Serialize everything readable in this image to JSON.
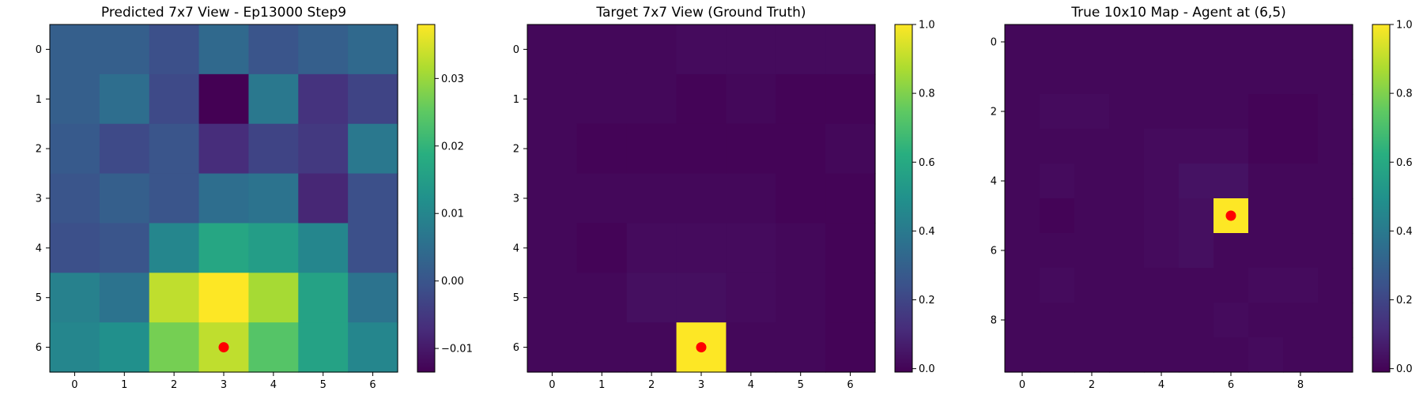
{
  "chart_data": [
    {
      "type": "heatmap",
      "title": "Predicted 7x7 View - Ep13000 Step9",
      "rows": 7,
      "cols": 7,
      "x_ticks": [
        0,
        1,
        2,
        3,
        4,
        5,
        6
      ],
      "y_ticks": [
        0,
        1,
        2,
        3,
        4,
        5,
        6
      ],
      "colormap": "viridis",
      "clim": [
        -0.0135,
        0.038
      ],
      "colorbar_ticks": [
        -0.01,
        0.0,
        0.01,
        0.02,
        0.03
      ],
      "colorbar_labels": [
        "−0.01",
        "0.00",
        "0.01",
        "0.02",
        "0.03"
      ],
      "agent_marker": {
        "row": 6,
        "col": 3,
        "color": "#ff0000"
      },
      "values": [
        [
          0.002,
          0.002,
          -0.001,
          0.004,
          -0.0,
          0.002,
          0.004
        ],
        [
          0.002,
          0.005,
          -0.002,
          -0.0135,
          0.007,
          -0.006,
          -0.003
        ],
        [
          0.001,
          -0.002,
          0.0,
          -0.007,
          -0.003,
          -0.005,
          0.007
        ],
        [
          -0.0,
          0.002,
          0.0,
          0.005,
          0.006,
          -0.008,
          -0.001
        ],
        [
          -0.001,
          -0.0,
          0.01,
          0.017,
          0.015,
          0.01,
          -0.001
        ],
        [
          0.009,
          0.006,
          0.033,
          0.038,
          0.031,
          0.016,
          0.006
        ],
        [
          0.01,
          0.012,
          0.027,
          0.033,
          0.024,
          0.016,
          0.01
        ]
      ]
    },
    {
      "type": "heatmap",
      "title": "Target 7x7 View (Ground Truth)",
      "rows": 7,
      "cols": 7,
      "x_ticks": [
        0,
        1,
        2,
        3,
        4,
        5,
        6
      ],
      "y_ticks": [
        0,
        1,
        2,
        3,
        4,
        5,
        6
      ],
      "colormap": "viridis",
      "clim": [
        -0.01,
        1.0
      ],
      "colorbar_ticks": [
        0.0,
        0.2,
        0.4,
        0.6,
        0.8,
        1.0
      ],
      "colorbar_labels": [
        "0.0",
        "0.2",
        "0.4",
        "0.6",
        "0.8",
        "1.0"
      ],
      "agent_marker": {
        "row": 6,
        "col": 3,
        "color": "#ff0000"
      },
      "values": [
        [
          0.01,
          0.01,
          0.01,
          0.02,
          0.02,
          0.02,
          0.02
        ],
        [
          0.01,
          0.01,
          0.01,
          0.0,
          0.01,
          0.0,
          0.0
        ],
        [
          0.01,
          0.0,
          0.0,
          0.0,
          0.0,
          0.0,
          0.01
        ],
        [
          0.01,
          0.01,
          0.01,
          0.01,
          0.01,
          0.0,
          0.0
        ],
        [
          0.01,
          0.0,
          0.02,
          0.02,
          0.02,
          0.01,
          0.0
        ],
        [
          0.01,
          0.01,
          0.03,
          0.03,
          0.02,
          0.01,
          0.0
        ],
        [
          0.01,
          0.01,
          0.01,
          1.0,
          0.01,
          0.01,
          0.0
        ]
      ]
    },
    {
      "type": "heatmap",
      "title": "True 10x10 Map - Agent at (6,5)",
      "rows": 10,
      "cols": 10,
      "x_ticks": [
        0,
        2,
        4,
        6,
        8
      ],
      "y_ticks": [
        0,
        2,
        4,
        6,
        8
      ],
      "colormap": "viridis",
      "clim": [
        -0.01,
        1.0
      ],
      "colorbar_ticks": [
        0.0,
        0.2,
        0.4,
        0.6,
        0.8,
        1.0
      ],
      "colorbar_labels": [
        "0.0",
        "0.2",
        "0.4",
        "0.6",
        "0.8",
        "1.0"
      ],
      "agent_marker": {
        "row": 5,
        "col": 6,
        "color": "#ff0000"
      },
      "values": [
        [
          0.01,
          0.01,
          0.01,
          0.01,
          0.01,
          0.01,
          0.01,
          0.01,
          0.01,
          0.01
        ],
        [
          0.01,
          0.01,
          0.01,
          0.01,
          0.01,
          0.01,
          0.01,
          0.01,
          0.01,
          0.01
        ],
        [
          0.01,
          0.02,
          0.02,
          0.01,
          0.01,
          0.01,
          0.01,
          0.0,
          0.0,
          0.01
        ],
        [
          0.01,
          0.01,
          0.01,
          0.01,
          0.02,
          0.02,
          0.02,
          0.0,
          0.0,
          0.01
        ],
        [
          0.01,
          0.02,
          0.01,
          0.01,
          0.02,
          0.04,
          0.04,
          0.01,
          0.01,
          0.01
        ],
        [
          0.01,
          0.0,
          0.01,
          0.01,
          0.02,
          0.03,
          1.0,
          0.01,
          0.01,
          0.01
        ],
        [
          0.01,
          0.01,
          0.01,
          0.01,
          0.02,
          0.03,
          0.01,
          0.01,
          0.01,
          0.01
        ],
        [
          0.01,
          0.02,
          0.01,
          0.01,
          0.01,
          0.01,
          0.01,
          0.02,
          0.02,
          0.01
        ],
        [
          0.01,
          0.01,
          0.01,
          0.01,
          0.01,
          0.01,
          0.02,
          0.01,
          0.01,
          0.01
        ],
        [
          0.01,
          0.01,
          0.01,
          0.01,
          0.01,
          0.01,
          0.01,
          0.02,
          0.01,
          0.01
        ]
      ]
    }
  ]
}
